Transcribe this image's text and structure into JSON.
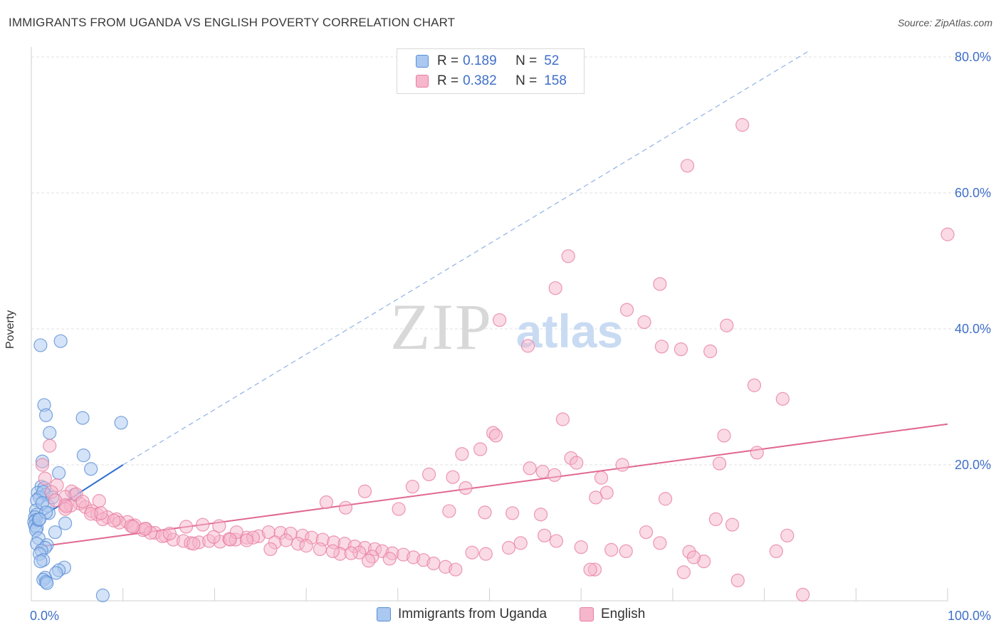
{
  "header": {
    "title": "IMMIGRANTS FROM UGANDA VS ENGLISH POVERTY CORRELATION CHART",
    "source": "Source: ZipAtlas.com"
  },
  "watermark": {
    "zip": "ZIP",
    "atlas": "atlas"
  },
  "colors": {
    "blue_fill": "#aac8f0",
    "blue_stroke": "#5b8fd6",
    "blue_line": "#2f6fcf",
    "pink_fill": "#f6b6cb",
    "pink_stroke": "#e87fa0",
    "pink_line": "#e06890",
    "tick_text": "#3f6fc8",
    "grid": "#e2e2e2"
  },
  "legend": {
    "rows": [
      {
        "r_label": "R =",
        "r_value": "0.189",
        "n_label": "N =",
        "n_value": "52"
      },
      {
        "r_label": "R =",
        "r_value": "0.382",
        "n_label": "N =",
        "n_value": "158"
      }
    ]
  },
  "chart_data": {
    "type": "scatter",
    "title": "IMMIGRANTS FROM UGANDA VS ENGLISH POVERTY CORRELATION CHART",
    "xlabel": "",
    "ylabel": "Poverty",
    "xlim": [
      0,
      100
    ],
    "ylim": [
      0,
      80
    ],
    "x_tick_labels": [
      "0.0%",
      "100.0%"
    ],
    "y_ticks": [
      20,
      40,
      60,
      80
    ],
    "y_tick_labels": [
      "20.0%",
      "40.0%",
      "60.0%",
      "80.0%"
    ],
    "grid": true,
    "series": [
      {
        "name": "Immigrants from Uganda",
        "color": "blue",
        "trend": {
          "solid": [
            [
              0.5,
              11.8
            ],
            [
              10,
              20.0
            ]
          ],
          "dashed": [
            [
              10,
              20.0
            ],
            [
              85,
              81.0
            ]
          ]
        },
        "points": [
          [
            1.0,
            37.6
          ],
          [
            3.2,
            38.2
          ],
          [
            1.4,
            28.8
          ],
          [
            1.6,
            27.3
          ],
          [
            5.6,
            26.9
          ],
          [
            9.8,
            26.2
          ],
          [
            2.0,
            24.7
          ],
          [
            5.7,
            21.4
          ],
          [
            1.2,
            20.5
          ],
          [
            6.5,
            19.4
          ],
          [
            3.0,
            18.8
          ],
          [
            1.1,
            16.8
          ],
          [
            1.4,
            16.6
          ],
          [
            0.7,
            15.9
          ],
          [
            1.6,
            15.6
          ],
          [
            0.9,
            15.2
          ],
          [
            1.3,
            16.0
          ],
          [
            0.6,
            14.8
          ],
          [
            1.8,
            14.0
          ],
          [
            0.5,
            13.3
          ],
          [
            0.6,
            12.7
          ],
          [
            1.9,
            12.9
          ],
          [
            0.4,
            12.3
          ],
          [
            0.5,
            11.9
          ],
          [
            0.3,
            11.6
          ],
          [
            3.7,
            11.4
          ],
          [
            0.4,
            11.1
          ],
          [
            0.6,
            10.7
          ],
          [
            0.5,
            10.4
          ],
          [
            2.6,
            10.1
          ],
          [
            0.8,
            9.2
          ],
          [
            1.7,
            8.2
          ],
          [
            0.6,
            8.4
          ],
          [
            1.5,
            7.8
          ],
          [
            1.1,
            7.4
          ],
          [
            0.9,
            6.9
          ],
          [
            1.3,
            6.0
          ],
          [
            1.0,
            5.8
          ],
          [
            3.6,
            4.9
          ],
          [
            3.0,
            4.5
          ],
          [
            2.7,
            4.1
          ],
          [
            1.5,
            3.4
          ],
          [
            1.3,
            3.1
          ],
          [
            1.6,
            2.8
          ],
          [
            1.7,
            2.6
          ],
          [
            7.8,
            0.8
          ],
          [
            4.7,
            15.6
          ],
          [
            2.3,
            15.2
          ],
          [
            1.2,
            14.4
          ],
          [
            0.8,
            11.9
          ],
          [
            1.6,
            13.0
          ],
          [
            0.9,
            12.0
          ]
        ]
      },
      {
        "name": "English",
        "color": "pink",
        "trend": {
          "solid": [
            [
              0.5,
              7.9
            ],
            [
              100,
              26.0
            ]
          ]
        },
        "points": [
          [
            77.6,
            70.0
          ],
          [
            71.6,
            64.0
          ],
          [
            100,
            53.9
          ],
          [
            58.6,
            50.7
          ],
          [
            57.2,
            46.0
          ],
          [
            68.6,
            46.6
          ],
          [
            65.0,
            42.8
          ],
          [
            51.1,
            41.3
          ],
          [
            66.9,
            41.0
          ],
          [
            75.9,
            40.5
          ],
          [
            54.2,
            37.5
          ],
          [
            68.8,
            37.4
          ],
          [
            70.9,
            37.0
          ],
          [
            74.1,
            36.7
          ],
          [
            78.9,
            31.7
          ],
          [
            82.0,
            29.7
          ],
          [
            58.0,
            26.7
          ],
          [
            50.4,
            24.7
          ],
          [
            50.7,
            24.3
          ],
          [
            75.6,
            24.3
          ],
          [
            49.0,
            22.3
          ],
          [
            47.0,
            21.6
          ],
          [
            58.9,
            21.0
          ],
          [
            79.2,
            21.8
          ],
          [
            64.5,
            20.0
          ],
          [
            59.5,
            20.3
          ],
          [
            75.1,
            20.2
          ],
          [
            2.0,
            22.8
          ],
          [
            1.2,
            20.0
          ],
          [
            54.4,
            19.5
          ],
          [
            55.8,
            19.0
          ],
          [
            43.4,
            18.6
          ],
          [
            46.0,
            18.2
          ],
          [
            62.2,
            18.1
          ],
          [
            57.1,
            18.5
          ],
          [
            1.5,
            18.0
          ],
          [
            47.4,
            16.6
          ],
          [
            41.6,
            16.8
          ],
          [
            2.8,
            17.0
          ],
          [
            62.8,
            15.9
          ],
          [
            36.4,
            16.1
          ],
          [
            2.2,
            16.0
          ],
          [
            4.4,
            16.1
          ],
          [
            3.7,
            15.3
          ],
          [
            61.6,
            15.2
          ],
          [
            69.2,
            15.0
          ],
          [
            4.9,
            15.7
          ],
          [
            7.4,
            14.7
          ],
          [
            2.6,
            14.8
          ],
          [
            3.7,
            14.1
          ],
          [
            5.3,
            14.3
          ],
          [
            32.2,
            14.5
          ],
          [
            34.3,
            13.7
          ],
          [
            40.1,
            13.5
          ],
          [
            45.6,
            13.2
          ],
          [
            49.5,
            13.0
          ],
          [
            52.5,
            12.9
          ],
          [
            55.6,
            12.7
          ],
          [
            4.3,
            14.0
          ],
          [
            3.7,
            13.5
          ],
          [
            5.9,
            13.8
          ],
          [
            6.6,
            13.2
          ],
          [
            7.2,
            12.7
          ],
          [
            8.3,
            12.3
          ],
          [
            9.3,
            12.0
          ],
          [
            10.5,
            11.6
          ],
          [
            11.3,
            11.1
          ],
          [
            12.5,
            10.6
          ],
          [
            13.5,
            10.0
          ],
          [
            14.6,
            9.6
          ],
          [
            6.5,
            12.8
          ],
          [
            7.8,
            12.0
          ],
          [
            9.6,
            11.5
          ],
          [
            10.9,
            11.0
          ],
          [
            12.2,
            10.4
          ],
          [
            13.0,
            10.0
          ],
          [
            14.3,
            9.5
          ],
          [
            15.5,
            9.0
          ],
          [
            16.6,
            8.8
          ],
          [
            17.4,
            8.5
          ],
          [
            18.3,
            8.6
          ],
          [
            19.4,
            8.8
          ],
          [
            20.6,
            8.7
          ],
          [
            21.6,
            9.1
          ],
          [
            22.3,
            9.0
          ],
          [
            23.5,
            9.3
          ],
          [
            24.8,
            9.5
          ],
          [
            25.9,
            10.1
          ],
          [
            27.2,
            10.0
          ],
          [
            28.3,
            9.9
          ],
          [
            29.6,
            9.6
          ],
          [
            30.6,
            9.3
          ],
          [
            31.8,
            9.0
          ],
          [
            33.0,
            8.6
          ],
          [
            34.2,
            8.4
          ],
          [
            35.3,
            8.0
          ],
          [
            36.4,
            7.8
          ],
          [
            37.5,
            7.6
          ],
          [
            38.3,
            7.3
          ],
          [
            39.4,
            7.0
          ],
          [
            40.6,
            6.8
          ],
          [
            41.7,
            6.4
          ],
          [
            42.8,
            6.0
          ],
          [
            43.9,
            5.5
          ],
          [
            45.2,
            5.0
          ],
          [
            46.3,
            4.6
          ],
          [
            48.1,
            7.1
          ],
          [
            49.6,
            6.9
          ],
          [
            52.1,
            7.8
          ],
          [
            53.4,
            8.5
          ],
          [
            56.0,
            9.6
          ],
          [
            57.3,
            8.8
          ],
          [
            60.0,
            7.9
          ],
          [
            61.5,
            4.6
          ],
          [
            63.3,
            7.5
          ],
          [
            64.9,
            7.3
          ],
          [
            67.1,
            10.1
          ],
          [
            68.6,
            8.5
          ],
          [
            71.8,
            7.2
          ],
          [
            73.4,
            5.8
          ],
          [
            72.3,
            6.4
          ],
          [
            74.7,
            12.0
          ],
          [
            76.5,
            11.2
          ],
          [
            77.1,
            3.0
          ],
          [
            81.3,
            7.3
          ],
          [
            82.5,
            9.6
          ],
          [
            84.2,
            0.9
          ],
          [
            71.2,
            4.2
          ],
          [
            61.0,
            4.6
          ],
          [
            39.1,
            6.2
          ],
          [
            37.2,
            6.5
          ],
          [
            36.8,
            5.9
          ],
          [
            35.8,
            7.1
          ],
          [
            33.7,
            6.9
          ],
          [
            31.5,
            7.6
          ],
          [
            29.1,
            8.4
          ],
          [
            26.6,
            8.6
          ],
          [
            24.2,
            9.3
          ],
          [
            22.4,
            10.1
          ],
          [
            20.5,
            11.0
          ],
          [
            18.7,
            11.2
          ],
          [
            16.9,
            10.9
          ],
          [
            15.1,
            9.9
          ],
          [
            12.4,
            10.6
          ],
          [
            11.1,
            10.9
          ],
          [
            9.0,
            11.8
          ],
          [
            7.6,
            12.9
          ],
          [
            5.6,
            14.6
          ],
          [
            3.8,
            13.9
          ],
          [
            27.8,
            8.9
          ],
          [
            30.0,
            8.1
          ],
          [
            32.9,
            7.3
          ],
          [
            34.9,
            7.0
          ],
          [
            19.9,
            9.4
          ],
          [
            21.7,
            9.0
          ],
          [
            17.7,
            8.4
          ],
          [
            23.5,
            8.9
          ],
          [
            26.1,
            7.6
          ]
        ]
      }
    ]
  },
  "bottom_legend": {
    "items": [
      {
        "label": "Immigrants from Uganda"
      },
      {
        "label": "English"
      }
    ]
  }
}
